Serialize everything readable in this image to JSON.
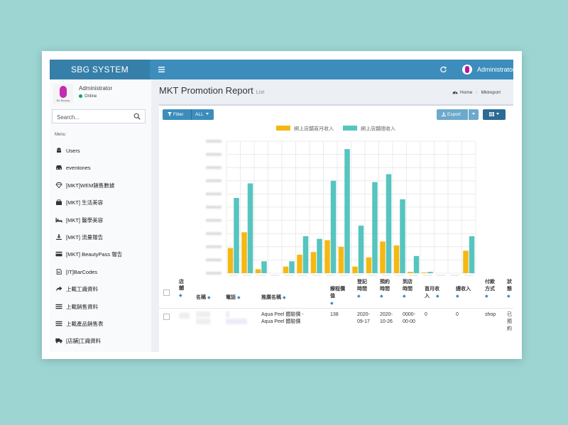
{
  "app": {
    "brand": "SBG SYSTEM",
    "user_name": "Administrator",
    "user_status": "Online"
  },
  "sidebar": {
    "search_placeholder": "Search...",
    "menu_header": "Menu",
    "items": [
      {
        "label": "Users",
        "icon": "android-icon"
      },
      {
        "label": "eventones",
        "icon": "car-icon"
      },
      {
        "label": "[MKT]WEM銷售數據",
        "icon": "diamond-icon"
      },
      {
        "label": "[MKT] 生活美容",
        "icon": "shopping-bag-icon"
      },
      {
        "label": "[MKT] 醫學美容",
        "icon": "bed-icon"
      },
      {
        "label": "[MKT] 流量報告",
        "icon": "download-icon"
      },
      {
        "label": "[MKT] BeautyPass 報告",
        "icon": "credit-card-icon"
      },
      {
        "label": "[IT]BarCodes",
        "icon": "file-icon"
      },
      {
        "label": "上載工識資料",
        "icon": "share-icon"
      },
      {
        "label": "上載銷售資料",
        "icon": "list-icon"
      },
      {
        "label": "上載產品銷售表",
        "icon": "list-icon"
      },
      {
        "label": "[店舖]工識資料",
        "icon": "truck-icon"
      }
    ]
  },
  "page": {
    "title": "MKT Promotion Report",
    "subtitle": "List",
    "breadcrumb_home": "Home",
    "breadcrumb_current": "Mktreport"
  },
  "toolbar": {
    "filter_label": "Filter",
    "all_label": "ALL",
    "export_label": "Export"
  },
  "chart_data": {
    "type": "bar",
    "legend_position": "top",
    "grid": true,
    "ylim": [
      0,
      10
    ],
    "series": [
      {
        "name": "網上店舖首月收入",
        "color": "#f5b812",
        "values": [
          1.9,
          3.1,
          0.3,
          0,
          0.5,
          1.4,
          1.6,
          2.5,
          2.0,
          0.5,
          1.2,
          2.4,
          2.1,
          0.1,
          0.05,
          0,
          0,
          1.7
        ]
      },
      {
        "name": "網上店舖總收入",
        "color": "#56c4bf",
        "values": [
          5.7,
          6.8,
          0.9,
          0,
          0.9,
          2.8,
          2.6,
          7.0,
          9.4,
          3.6,
          6.9,
          7.5,
          5.6,
          1.3,
          0.1,
          0,
          0,
          2.8
        ]
      }
    ]
  },
  "table": {
    "headers": {
      "store": "店舖",
      "name": "名稱",
      "phone": "電話",
      "promo": "推廣名稱",
      "price": "療程價值",
      "reg_time": "登記時間",
      "book_time": "預約時間",
      "arrive_time": "到店時間",
      "first_income": "首月收入",
      "total_income": "總收入",
      "payment": "付款方式",
      "status": "狀態"
    },
    "rows": [
      {
        "promo_line1": "Aqua Peel 體驗價 -",
        "promo_line2": "Aqua Peel 體驗價",
        "price": "138",
        "reg_date": "2020-",
        "reg_date2": "09-17",
        "book_date": "2020-",
        "book_date2": "10-26",
        "arrive_date": "0000-",
        "arrive_date2": "00-00",
        "first_income": "0",
        "total_income": "0",
        "payment": "shop",
        "status_1": "已",
        "status_2": "預",
        "status_3": "約"
      }
    ]
  }
}
